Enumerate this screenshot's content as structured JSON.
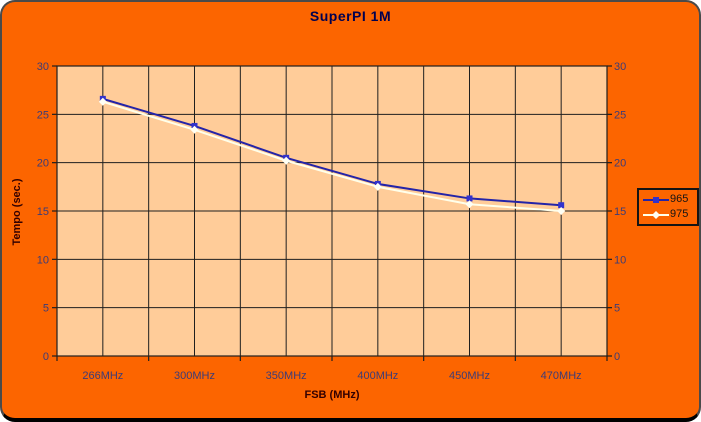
{
  "chart_data": {
    "type": "line",
    "title": "SuperPI 1M",
    "xlabel": "FSB (MHz)",
    "ylabel": "Tempo (sec.)",
    "categories": [
      "266MHz",
      "300MHz",
      "350MHz",
      "400MHz",
      "450MHz",
      "470MHz"
    ],
    "series": [
      {
        "name": "965",
        "marker": "square",
        "color": "#2424a8",
        "marker_color": "#3232cc",
        "values": [
          26.6,
          23.8,
          20.5,
          17.8,
          16.3,
          15.6
        ]
      },
      {
        "name": "975",
        "marker": "diamond",
        "color": "#ffffea",
        "marker_color": "#fffff4",
        "values": [
          26.3,
          23.4,
          20.2,
          17.5,
          15.7,
          15.0
        ]
      }
    ],
    "ylim": [
      0,
      30
    ],
    "ytick_step": 5,
    "yticks": [
      0,
      5,
      10,
      15,
      20,
      25,
      30
    ],
    "grid": true,
    "gridlines": "horizontal every 5 units, vertical at category boundaries and centers",
    "legend_position": "right",
    "dual_y_axis": true
  },
  "colors": {
    "page_bg": "#ffffff",
    "chart_bg": "#fc6500",
    "plot_bg": "#ffcc99",
    "grid": "#1f1f1f",
    "frame_border": "#4a4a4a",
    "frame_bottom": "#000000",
    "title_text": "#00004f",
    "tick_text": "#3c3c78",
    "axis_title_text": "#330000",
    "legend_text": "#141414",
    "legend_border": "#141414"
  }
}
